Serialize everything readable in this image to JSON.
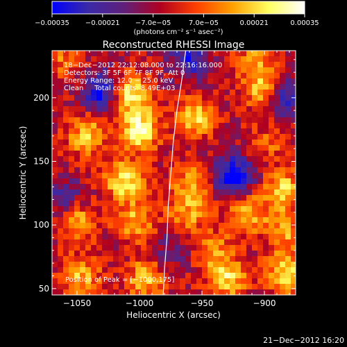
{
  "chart_data": {
    "type": "heatmap",
    "title": "Reconstructed RHESSI Image",
    "xlabel": "Heliocentric X (arcsec)",
    "ylabel": "Heliocentric Y (arcsec)",
    "xlim": [
      -1070,
      -875
    ],
    "ylim": [
      45,
      237
    ],
    "x_ticks": [
      -1050,
      -1000,
      -950,
      -900
    ],
    "x_tick_labels": [
      "−1050",
      "−1000",
      "−950",
      "−900"
    ],
    "y_ticks": [
      50,
      100,
      150,
      200
    ],
    "y_tick_labels": [
      "50",
      "100",
      "150",
      "200"
    ],
    "colorbar": {
      "range": [
        -0.00035,
        0.00035
      ],
      "tick_labels": [
        "−0.00035",
        "−0.00021",
        "−7.0e−05",
        "7.0e−05",
        "0.00021",
        "0.00035"
      ],
      "units_label": "(photons cm⁻² s⁻¹ asec⁻²)",
      "colors": [
        "#0000ff",
        "#3a2aa8",
        "#60207a",
        "#b00020",
        "#ff4000",
        "#ffa000",
        "#ffff60",
        "#ffffff"
      ]
    },
    "annotations": [
      "18−Dec−2012 22:12:08.000 to 22:16:16.000",
      "Detectors: 3F 5F 6F 7F 8F 9F, Att 0",
      "Energy Range: 12.0 − 25.0 keV",
      "Clean     Total counts: 8.49E+03"
    ],
    "peak_text": "Position of Peak = [−1000,175]",
    "peak_position": [
      -1000,
      175
    ],
    "limb_curve": [
      [
        -963,
        237
      ],
      [
        -966,
        215
      ],
      [
        -970,
        190
      ],
      [
        -973,
        165
      ],
      [
        -975,
        140
      ],
      [
        -977,
        115
      ],
      [
        -978,
        90
      ],
      [
        -980,
        65
      ],
      [
        -981,
        45
      ]
    ],
    "hot_spots": [
      {
        "x": -1007,
        "y": 203,
        "v": 0.00032
      },
      {
        "x": -1000,
        "y": 175,
        "v": 0.00035
      },
      {
        "x": -1042,
        "y": 170,
        "v": 0.00024
      },
      {
        "x": -955,
        "y": 184,
        "v": 0.00026
      },
      {
        "x": -1012,
        "y": 135,
        "v": 0.0003
      },
      {
        "x": -958,
        "y": 132,
        "v": 0.00022
      },
      {
        "x": -900,
        "y": 205,
        "v": 0.00027
      },
      {
        "x": -908,
        "y": 228,
        "v": 0.00018
      },
      {
        "x": -885,
        "y": 128,
        "v": 0.00026
      },
      {
        "x": -1050,
        "y": 103,
        "v": 0.00024
      },
      {
        "x": -1003,
        "y": 103,
        "v": 0.00022
      },
      {
        "x": -962,
        "y": 108,
        "v": 0.00018
      },
      {
        "x": -915,
        "y": 110,
        "v": 0.00025
      },
      {
        "x": -1047,
        "y": 60,
        "v": 0.00022
      },
      {
        "x": -995,
        "y": 58,
        "v": 0.00024
      },
      {
        "x": -930,
        "y": 58,
        "v": 0.00027
      },
      {
        "x": -882,
        "y": 62,
        "v": 0.00028
      },
      {
        "x": -885,
        "y": 95,
        "v": 0.0002
      },
      {
        "x": -940,
        "y": 80,
        "v": 0.00016
      },
      {
        "x": -1060,
        "y": 230,
        "v": 0.00014
      },
      {
        "x": -895,
        "y": 165,
        "v": 0.00012
      }
    ],
    "cold_spots": [
      {
        "x": -925,
        "y": 138,
        "v": -0.00035
      },
      {
        "x": -1030,
        "y": 205,
        "v": -0.00028
      },
      {
        "x": -885,
        "y": 200,
        "v": -0.00026
      },
      {
        "x": -960,
        "y": 230,
        "v": -0.00022
      },
      {
        "x": -1060,
        "y": 120,
        "v": -0.00016
      },
      {
        "x": -975,
        "y": 80,
        "v": -0.00012
      }
    ]
  },
  "footer": {
    "timestamp": "21−Dec−2012 16:20"
  }
}
